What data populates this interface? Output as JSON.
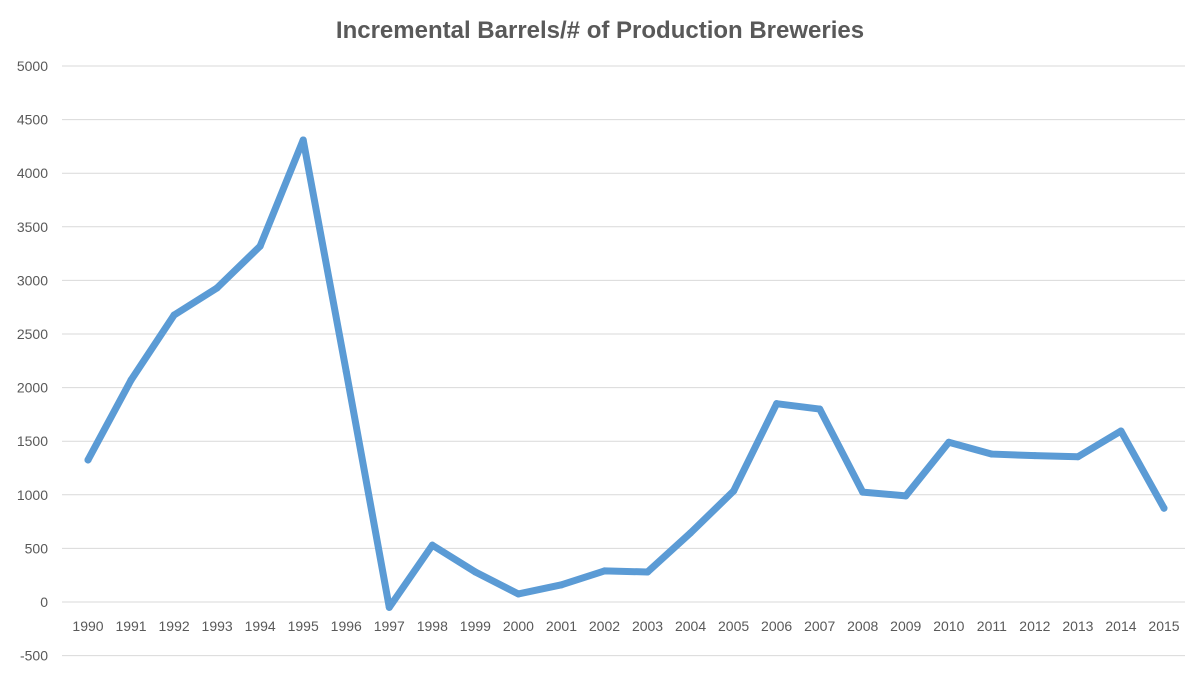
{
  "chart_data": {
    "type": "line",
    "title": "Incremental Barrels/# of Production Breweries",
    "xlabel": "",
    "ylabel": "",
    "ylim": [
      -500,
      5000
    ],
    "yticks": [
      -500,
      0,
      500,
      1000,
      1500,
      2000,
      2500,
      3000,
      3500,
      4000,
      4500,
      5000
    ],
    "grid": true,
    "legend": "none",
    "line_color": "#5B9BD5",
    "categories": [
      "1990",
      "1991",
      "1992",
      "1993",
      "1994",
      "1995",
      "1996",
      "1997",
      "1998",
      "1999",
      "2000",
      "2001",
      "2002",
      "2003",
      "2004",
      "2005",
      "2006",
      "2007",
      "2008",
      "2009",
      "2010",
      "2011",
      "2012",
      "2013",
      "2014",
      "2015"
    ],
    "values": [
      1325,
      2070,
      2677,
      2930,
      3320,
      4310,
      2150,
      -50,
      530,
      280,
      75,
      160,
      290,
      280,
      645,
      1035,
      1850,
      1800,
      1025,
      990,
      1490,
      1380,
      1365,
      1355,
      1595,
      875
    ]
  }
}
